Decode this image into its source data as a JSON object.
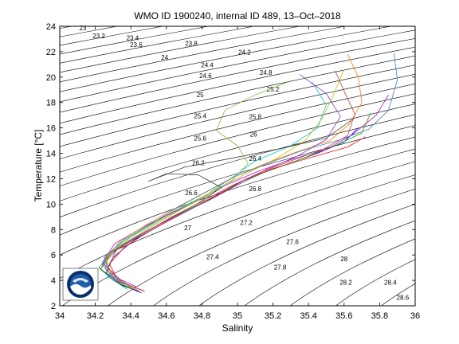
{
  "chart_data": {
    "type": "scatter",
    "title": "WMO ID 1900240, internal ID 489, 13–Oct–2018",
    "xlabel": "Salinity",
    "ylabel": "Temperature [°C]",
    "xlim": [
      34,
      36
    ],
    "ylim": [
      2,
      24
    ],
    "x_ticks": [
      "34",
      "34.2",
      "34.4",
      "34.6",
      "34.8",
      "35",
      "35.2",
      "35.4",
      "35.6",
      "35.8",
      "36"
    ],
    "y_ticks": [
      "2",
      "4",
      "6",
      "8",
      "10",
      "12",
      "14",
      "16",
      "18",
      "20",
      "22",
      "24"
    ],
    "grid": false,
    "density_contours": {
      "levels": [
        23,
        23.2,
        23.4,
        23.6,
        23.8,
        24,
        24.2,
        24.4,
        24.6,
        24.8,
        25,
        25.2,
        25.4,
        25.6,
        25.8,
        26,
        26.2,
        26.4,
        26.6,
        26.8,
        27,
        27.2,
        27.4,
        27.6,
        27.8,
        28,
        28.2,
        28.4,
        28.6
      ],
      "color": "#000000",
      "labels": [
        {
          "text": "23",
          "s": 34.13,
          "t": 23.87
        },
        {
          "text": "23.2",
          "s": 34.22,
          "t": 23.25
        },
        {
          "text": "23.4",
          "s": 34.41,
          "t": 23.08
        },
        {
          "text": "23.6",
          "s": 34.43,
          "t": 22.55
        },
        {
          "text": "23.8",
          "s": 34.74,
          "t": 22.65
        },
        {
          "text": "24",
          "s": 34.59,
          "t": 21.55
        },
        {
          "text": "24.2",
          "s": 35.04,
          "t": 21.95
        },
        {
          "text": "24.4",
          "s": 34.83,
          "t": 20.95
        },
        {
          "text": "24.6",
          "s": 34.82,
          "t": 20.1
        },
        {
          "text": "24.8",
          "s": 35.16,
          "t": 20.35
        },
        {
          "text": "25",
          "s": 34.79,
          "t": 18.6
        },
        {
          "text": "25.2",
          "s": 35.2,
          "t": 19.05
        },
        {
          "text": "25.4",
          "s": 34.79,
          "t": 16.95
        },
        {
          "text": "25.6",
          "s": 34.79,
          "t": 15.2
        },
        {
          "text": "25.8",
          "s": 35.1,
          "t": 16.9
        },
        {
          "text": "26",
          "s": 35.09,
          "t": 15.5
        },
        {
          "text": "26.2",
          "s": 34.78,
          "t": 13.25
        },
        {
          "text": "26.4",
          "s": 35.1,
          "t": 13.6
        },
        {
          "text": "26.6",
          "s": 34.74,
          "t": 10.9
        },
        {
          "text": "26.8",
          "s": 35.1,
          "t": 11.2
        },
        {
          "text": "27",
          "s": 34.72,
          "t": 8.15
        },
        {
          "text": "27.2",
          "s": 35.05,
          "t": 8.55
        },
        {
          "text": "27.4",
          "s": 34.86,
          "t": 5.85
        },
        {
          "text": "27.6",
          "s": 35.31,
          "t": 7.05
        },
        {
          "text": "27.8",
          "s": 35.24,
          "t": 5.05
        },
        {
          "text": "28",
          "s": 35.6,
          "t": 5.7
        },
        {
          "text": "28.2",
          "s": 35.61,
          "t": 3.85
        },
        {
          "text": "28.4",
          "s": 35.86,
          "t": 3.85
        },
        {
          "text": "28.6",
          "s": 35.93,
          "t": 2.65
        }
      ]
    },
    "profiles_description_series": [
      {
        "points": [
          [
            34.45,
            3.1
          ],
          [
            34.35,
            3.6
          ],
          [
            34.26,
            4.6
          ],
          [
            34.3,
            5.8
          ],
          [
            34.42,
            7.2
          ],
          [
            34.6,
            8.6
          ],
          [
            34.75,
            9.7
          ],
          [
            34.92,
            11.0
          ],
          [
            35.05,
            12.0
          ],
          [
            35.25,
            13.0
          ],
          [
            35.45,
            14.0
          ],
          [
            35.6,
            14.9
          ],
          [
            35.68,
            16.0
          ]
        ]
      },
      {
        "points": [
          [
            34.4,
            3.4
          ],
          [
            34.3,
            4.0
          ],
          [
            34.22,
            5.0
          ],
          [
            34.3,
            6.3
          ],
          [
            34.46,
            7.6
          ],
          [
            34.62,
            8.9
          ],
          [
            34.8,
            10.1
          ],
          [
            34.98,
            11.4
          ],
          [
            35.15,
            12.5
          ],
          [
            35.35,
            13.5
          ],
          [
            35.55,
            14.6
          ],
          [
            35.7,
            15.6
          ],
          [
            35.75,
            17.2
          ]
        ]
      },
      {
        "points": [
          [
            34.47,
            3.2
          ],
          [
            34.33,
            3.9
          ],
          [
            34.28,
            5.3
          ],
          [
            34.37,
            6.7
          ],
          [
            34.52,
            8.0
          ],
          [
            34.68,
            9.2
          ],
          [
            34.86,
            10.5
          ],
          [
            35.02,
            11.8
          ],
          [
            35.2,
            12.8
          ],
          [
            35.42,
            13.7
          ],
          [
            35.62,
            14.5
          ],
          [
            35.72,
            15.3
          ]
        ]
      },
      {
        "points": [
          [
            34.38,
            3.3
          ],
          [
            34.27,
            4.3
          ],
          [
            34.25,
            5.6
          ],
          [
            34.35,
            7.0
          ],
          [
            34.5,
            8.3
          ],
          [
            34.65,
            9.5
          ],
          [
            34.82,
            10.7
          ],
          [
            34.97,
            12.1
          ],
          [
            35.1,
            13.4
          ],
          [
            35.3,
            14.6
          ],
          [
            35.45,
            16.0
          ],
          [
            35.5,
            17.8
          ],
          [
            35.42,
            19.6
          ]
        ]
      },
      {
        "points": [
          [
            34.43,
            3.5
          ],
          [
            34.32,
            4.2
          ],
          [
            34.24,
            5.4
          ],
          [
            34.31,
            6.9
          ],
          [
            34.47,
            8.2
          ],
          [
            34.63,
            9.3
          ],
          [
            34.79,
            10.4
          ],
          [
            34.95,
            11.6
          ],
          [
            35.12,
            12.6
          ],
          [
            35.3,
            13.5
          ],
          [
            35.5,
            14.3
          ],
          [
            35.65,
            15.5
          ],
          [
            35.78,
            17.0
          ],
          [
            35.85,
            18.6
          ]
        ]
      },
      {
        "points": [
          [
            34.36,
            3.7
          ],
          [
            34.26,
            4.8
          ],
          [
            34.27,
            6.0
          ],
          [
            34.4,
            7.4
          ],
          [
            34.56,
            8.7
          ],
          [
            34.72,
            9.9
          ],
          [
            34.88,
            11.2
          ],
          [
            35.05,
            12.4
          ],
          [
            35.22,
            13.6
          ],
          [
            35.38,
            15.0
          ],
          [
            35.48,
            16.8
          ],
          [
            35.55,
            18.9
          ],
          [
            35.6,
            20.6
          ]
        ]
      },
      {
        "points": [
          [
            34.46,
            3.0
          ],
          [
            34.34,
            3.7
          ],
          [
            34.23,
            4.9
          ],
          [
            34.29,
            6.2
          ],
          [
            34.44,
            7.5
          ],
          [
            34.61,
            8.8
          ],
          [
            34.77,
            10.0
          ],
          [
            34.91,
            11.3
          ],
          [
            34.78,
            12.3
          ],
          [
            34.6,
            12.4
          ],
          [
            34.5,
            11.8
          ],
          [
            34.7,
            12.9
          ],
          [
            35.0,
            13.7
          ],
          [
            35.25,
            14.4
          ],
          [
            35.5,
            15.2
          ],
          [
            35.66,
            16.8
          ]
        ]
      },
      {
        "points": [
          [
            34.41,
            3.4
          ],
          [
            34.29,
            4.4
          ],
          [
            34.26,
            5.7
          ],
          [
            34.34,
            7.1
          ],
          [
            34.49,
            8.4
          ],
          [
            34.64,
            9.6
          ],
          [
            34.8,
            10.8
          ],
          [
            34.96,
            12.0
          ],
          [
            35.14,
            13.1
          ],
          [
            35.33,
            14.1
          ],
          [
            35.52,
            15.0
          ],
          [
            35.63,
            16.3
          ],
          [
            35.7,
            18.0
          ],
          [
            35.68,
            20.0
          ],
          [
            35.62,
            21.8
          ]
        ]
      },
      {
        "points": [
          [
            34.44,
            3.2
          ],
          [
            34.31,
            4.1
          ],
          [
            34.24,
            5.2
          ],
          [
            34.33,
            6.6
          ],
          [
            34.49,
            7.9
          ],
          [
            34.66,
            9.1
          ],
          [
            34.84,
            10.3
          ],
          [
            35.0,
            11.5
          ],
          [
            35.16,
            12.7
          ],
          [
            35.34,
            13.8
          ],
          [
            35.5,
            15.1
          ],
          [
            35.58,
            16.9
          ],
          [
            35.5,
            18.7
          ],
          [
            35.35,
            20.2
          ]
        ]
      },
      {
        "points": [
          [
            34.39,
            3.6
          ],
          [
            34.28,
            4.5
          ],
          [
            34.25,
            5.8
          ],
          [
            34.36,
            7.2
          ],
          [
            34.52,
            8.5
          ],
          [
            34.67,
            9.8
          ],
          [
            34.83,
            11.0
          ],
          [
            34.99,
            12.2
          ],
          [
            35.17,
            13.2
          ],
          [
            35.36,
            14.2
          ],
          [
            35.56,
            15.0
          ],
          [
            35.74,
            15.9
          ],
          [
            35.85,
            17.4
          ],
          [
            35.9,
            19.8
          ],
          [
            35.88,
            21.9
          ]
        ]
      },
      {
        "points": [
          [
            34.42,
            3.3
          ],
          [
            34.3,
            4.3
          ],
          [
            34.26,
            5.5
          ],
          [
            34.35,
            6.8
          ],
          [
            34.5,
            8.1
          ],
          [
            34.66,
            9.4
          ],
          [
            34.82,
            10.6
          ],
          [
            34.97,
            11.9
          ],
          [
            35.06,
            13.2
          ],
          [
            35.0,
            14.6
          ],
          [
            34.88,
            15.8
          ],
          [
            34.93,
            17.4
          ],
          [
            35.1,
            18.6
          ],
          [
            35.28,
            19.6
          ]
        ]
      },
      {
        "points": [
          [
            34.48,
            3.1
          ],
          [
            34.36,
            3.8
          ],
          [
            34.27,
            5.0
          ],
          [
            34.32,
            6.4
          ],
          [
            34.47,
            7.7
          ],
          [
            34.63,
            9.0
          ],
          [
            34.8,
            10.2
          ],
          [
            34.96,
            11.4
          ],
          [
            35.13,
            12.5
          ],
          [
            35.3,
            13.4
          ],
          [
            35.48,
            14.3
          ],
          [
            35.62,
            15.4
          ],
          [
            35.66,
            17.1
          ],
          [
            35.6,
            18.9
          ],
          [
            35.55,
            20.5
          ]
        ]
      }
    ],
    "noaa_logo": true,
    "colors": {
      "series_palette": [
        "#0000ff",
        "#00aa00",
        "#ff0000",
        "#00bfbf",
        "#bf00bf",
        "#bfbf00",
        "#404040",
        "#ff7f00",
        "#7f3fbf",
        "#3f7fbf",
        "#7fbf3f",
        "#bf3f3f"
      ],
      "axes": "#000000",
      "logo_blue": "#1f5fa8",
      "logo_dark_blue": "#0b2f6b"
    }
  }
}
